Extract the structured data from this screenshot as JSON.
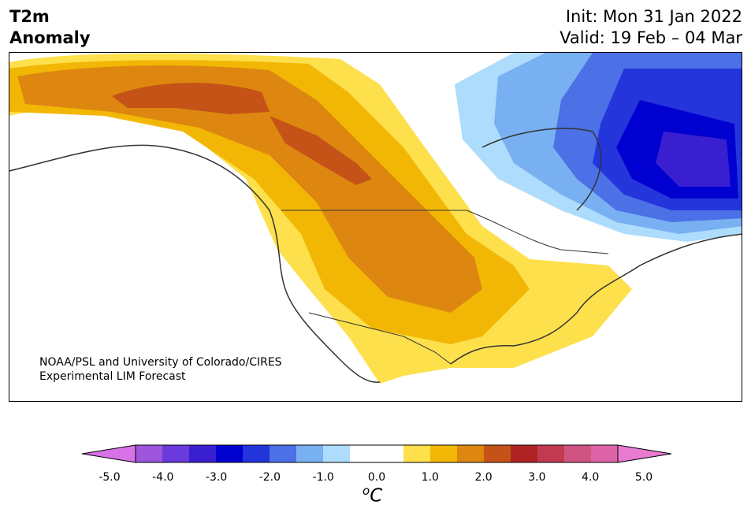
{
  "header": {
    "title_line1": "T2m",
    "title_line2": "Anomaly",
    "init": "Init: Mon 31 Jan 2022",
    "valid": "Valid: 19 Feb – 04 Mar"
  },
  "credit": {
    "line1": "NOAA/PSL and University of Colorado/CIRES",
    "line2": "Experimental LIM Forecast"
  },
  "colorbar": {
    "ticks": [
      "-5.0",
      "-4.0",
      "-3.0",
      "-2.0",
      "-1.0",
      "0.0",
      "1.0",
      "2.0",
      "3.0",
      "4.0",
      "5.0"
    ],
    "unit_base": "C",
    "unit_sup": "o",
    "colors": [
      "#d872e8",
      "#9d55dc",
      "#6a3adc",
      "#3a1fd0",
      "#0000d0",
      "#2435dc",
      "#4c70e6",
      "#78b0f2",
      "#aedcfc",
      "#ffffff",
      "#ffffff",
      "#fde04c",
      "#f2b705",
      "#dd8710",
      "#c55217",
      "#b02324",
      "#c23a52",
      "#cf5482",
      "#dd63a8",
      "#e87ad0"
    ]
  }
}
